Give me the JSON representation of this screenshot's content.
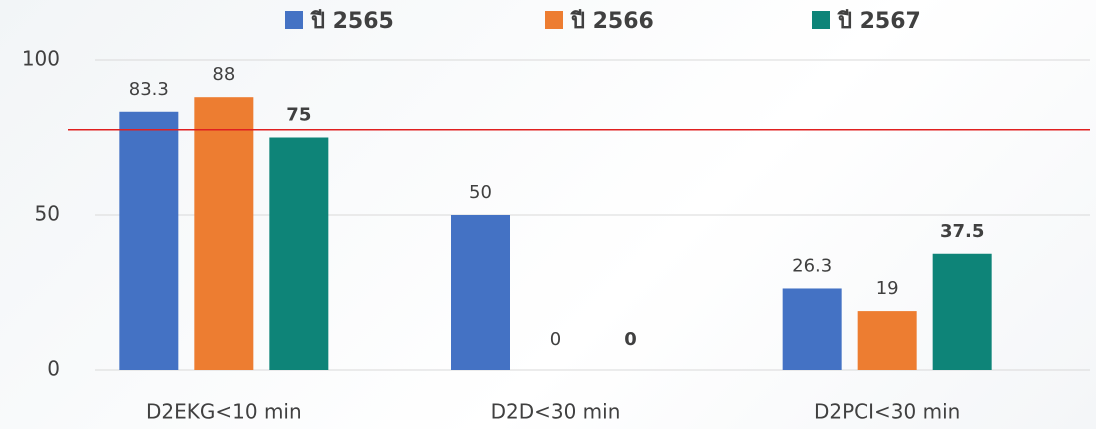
{
  "chart_data": {
    "type": "bar",
    "categories": [
      "D2EKG<10 min",
      "D2D<30 min",
      "D2PCI<30 min"
    ],
    "series": [
      {
        "name": "ปี 2565",
        "color": "#4472c4",
        "values": [
          83.3,
          50,
          26.3
        ]
      },
      {
        "name": "ปี 2566",
        "color": "#ed7d31",
        "values": [
          88,
          0,
          19
        ]
      },
      {
        "name": "ปี 2567",
        "color": "#0e8478",
        "values": [
          75,
          0,
          37.5
        ]
      }
    ],
    "ylim": [
      0,
      100
    ],
    "yticks": [
      0,
      50,
      100
    ],
    "grid": true,
    "reference_line": 77.5,
    "reference_color": "#e02020"
  }
}
